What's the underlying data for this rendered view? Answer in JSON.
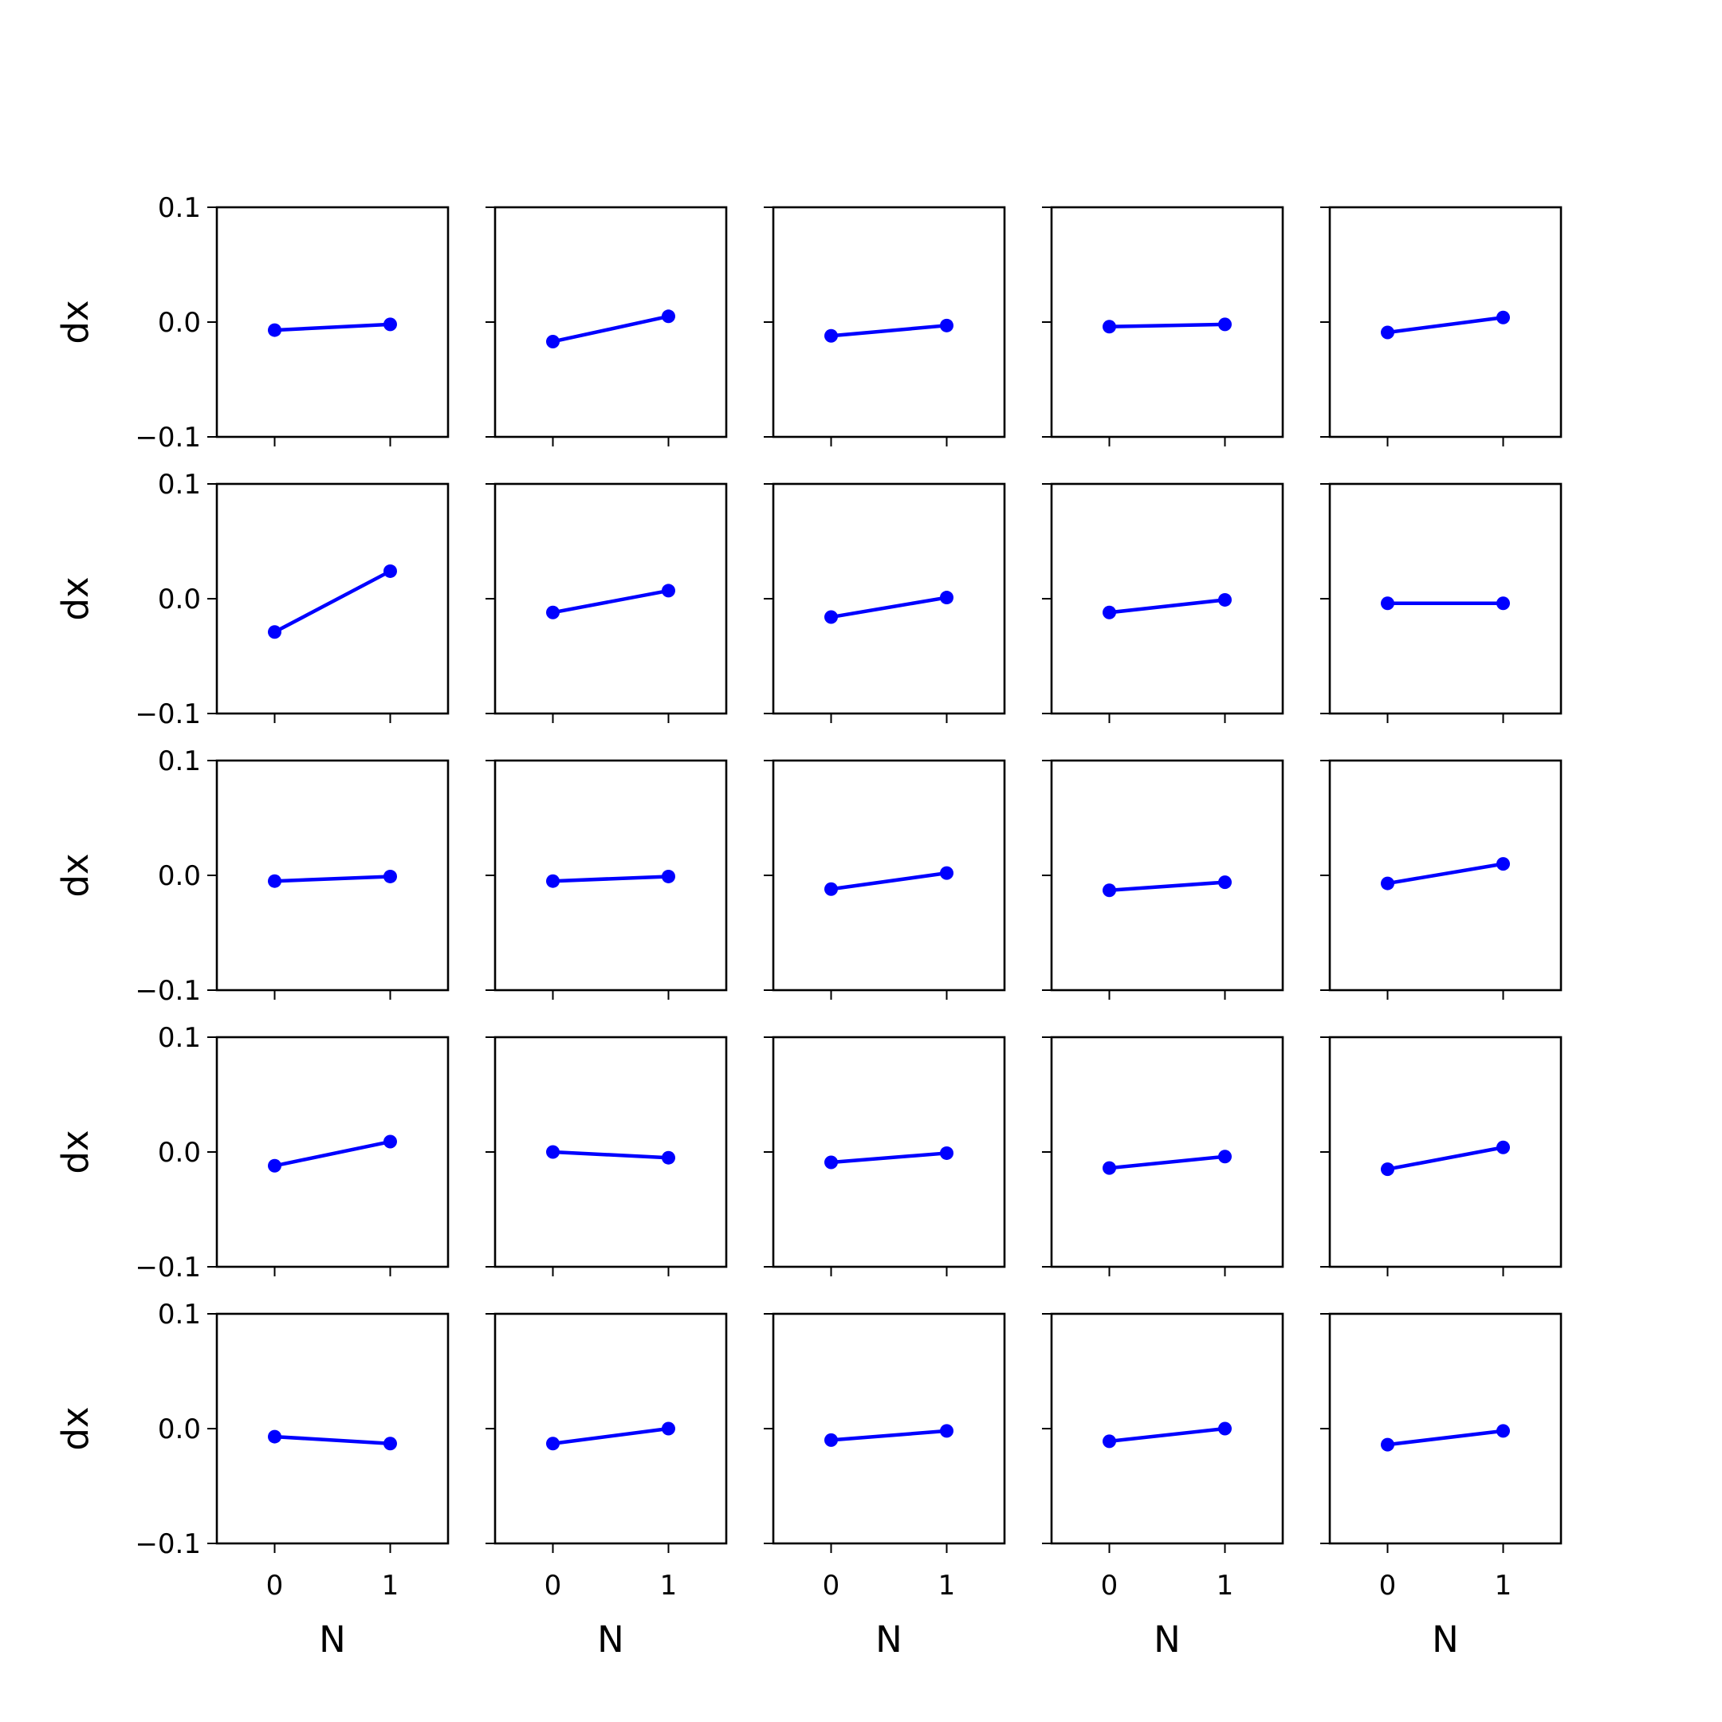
{
  "chart_data": {
    "type": "line",
    "layout": "grid",
    "rows": 5,
    "cols": 5,
    "x": [
      0,
      1
    ],
    "xticks": [
      "0",
      "1"
    ],
    "xlim": [
      -0.5,
      1.5
    ],
    "yticks": [
      "0.1",
      "0.0",
      "−0.1"
    ],
    "ylim": [
      -0.1,
      0.1
    ],
    "xlabel": "N",
    "ylabel": "dx",
    "grid": false,
    "legend": "none",
    "color": "#0000ff",
    "panels": [
      [
        [
          -0.007,
          -0.002
        ],
        [
          -0.017,
          0.005
        ],
        [
          -0.012,
          -0.003
        ],
        [
          -0.004,
          -0.002
        ],
        [
          -0.009,
          0.004
        ]
      ],
      [
        [
          -0.029,
          0.024
        ],
        [
          -0.012,
          0.007
        ],
        [
          -0.016,
          0.001
        ],
        [
          -0.012,
          -0.001
        ],
        [
          -0.004,
          -0.004
        ]
      ],
      [
        [
          -0.005,
          -0.001
        ],
        [
          -0.005,
          -0.001
        ],
        [
          -0.012,
          0.002
        ],
        [
          -0.013,
          -0.006
        ],
        [
          -0.007,
          0.01
        ]
      ],
      [
        [
          -0.012,
          0.009
        ],
        [
          0.0,
          -0.005
        ],
        [
          -0.009,
          -0.001
        ],
        [
          -0.014,
          -0.004
        ],
        [
          -0.015,
          0.004
        ]
      ],
      [
        [
          -0.007,
          -0.013
        ],
        [
          -0.013,
          0.0
        ],
        [
          -0.01,
          -0.002
        ],
        [
          -0.011,
          0.0
        ],
        [
          -0.014,
          -0.002
        ]
      ]
    ]
  }
}
